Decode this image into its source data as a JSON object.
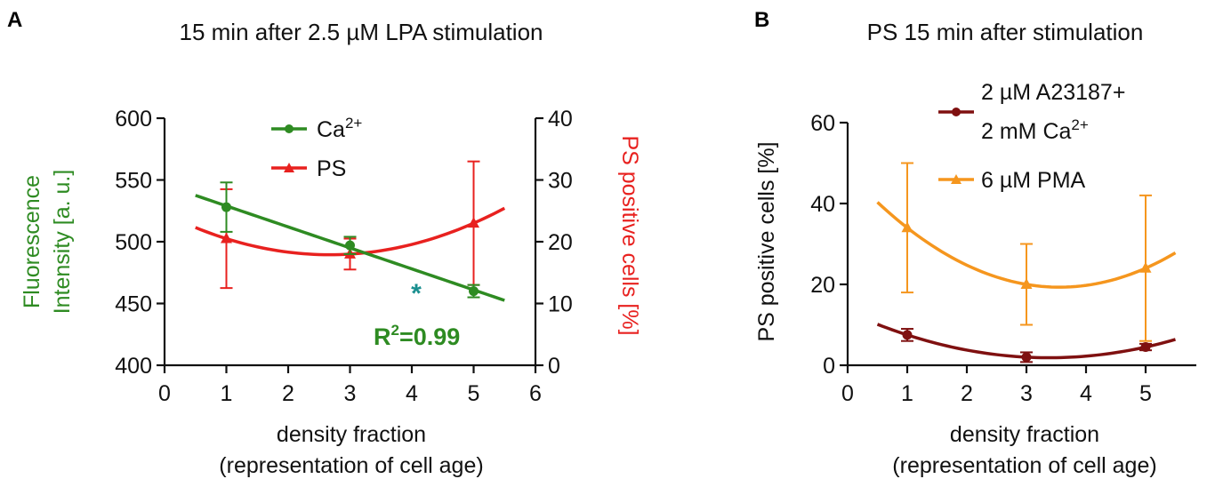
{
  "chart_data": [
    {
      "panel": "A",
      "type": "line",
      "title": "15 min after 2.5 µM LPA stimulation",
      "xlabel_line1": "density fraction",
      "xlabel_line2": "(representation of cell age)",
      "ylabel_line1": "Fluorescence",
      "ylabel_line2": "Intensity [a. u.]",
      "y2label": "PS positive cells [%]",
      "xlim": [
        0,
        6
      ],
      "ylim": [
        400,
        600
      ],
      "y2lim": [
        0,
        40
      ],
      "xticks": [
        "0",
        "1",
        "2",
        "3",
        "4",
        "5",
        "6"
      ],
      "yticks": [
        "400",
        "450",
        "500",
        "550",
        "600"
      ],
      "y2ticks": [
        "0",
        "10",
        "20",
        "30",
        "40"
      ],
      "series": [
        {
          "name": "Ca",
          "name_sup": "2+",
          "axis": "left",
          "color": "#2e8b22",
          "marker": "circle",
          "x": [
            1,
            3,
            5
          ],
          "y": [
            528,
            497,
            460
          ],
          "err": [
            20,
            7,
            5
          ],
          "fit": "linear",
          "fit_range": [
            0.5,
            5.5
          ]
        },
        {
          "name": "PS",
          "name_sup": "",
          "axis": "right",
          "color": "#e8211f",
          "marker": "triangle",
          "x": [
            1,
            3,
            5
          ],
          "y": [
            20.5,
            18,
            23
          ],
          "err": [
            8,
            2.5,
            10
          ],
          "fit": "quadratic",
          "fit_range": [
            0.5,
            5.5
          ]
        }
      ],
      "annotations": {
        "asterisk": "*",
        "asterisk_color": "#1a8f8f",
        "r2_prefix": "R",
        "r2_sup": "2",
        "r2_suffix": "=0.99",
        "r2_color": "#2e8b22"
      }
    },
    {
      "panel": "B",
      "type": "line",
      "title": "PS 15 min after stimulation",
      "xlabel_line1": "density fraction",
      "xlabel_line2": "(representation of cell age)",
      "ylabel": "PS positive cells [%]",
      "xlim": [
        0,
        5.6
      ],
      "ylim": [
        0,
        60
      ],
      "xticks": [
        "0",
        "1",
        "2",
        "3",
        "4",
        "5"
      ],
      "yticks": [
        "0",
        "20",
        "40",
        "60"
      ],
      "series": [
        {
          "name_line1": "2 µM A23187+",
          "name_line2": "2 mM Ca",
          "name_sup": "2+",
          "color": "#7f1010",
          "marker": "circle",
          "x": [
            1,
            3,
            5
          ],
          "y": [
            7.5,
            2,
            4.5
          ],
          "err": [
            1.5,
            1.2,
            0.8
          ],
          "fit": "quadratic",
          "fit_range": [
            0.5,
            5.5
          ]
        },
        {
          "name": "6 µM PMA",
          "color": "#f5961e",
          "marker": "triangle",
          "x": [
            1,
            3,
            5
          ],
          "y": [
            34,
            20,
            24
          ],
          "err": [
            16,
            10,
            18
          ],
          "fit": "quadratic",
          "fit_range": [
            0.5,
            5.5
          ]
        }
      ]
    }
  ]
}
